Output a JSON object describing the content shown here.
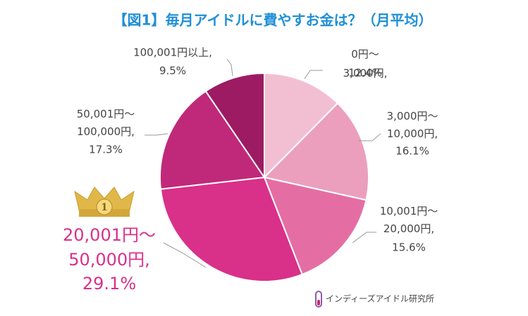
{
  "chart_data": {
    "type": "pie",
    "title": "【図1】毎月アイドルに費やすお金は？（月平均）",
    "categories": [
      "0円～3,000円,",
      "3,000円～10,000円,",
      "10,001円～20,000円,",
      "20,001円～50,000円,",
      "50,001円～100,000円,",
      "100,001円以上,"
    ],
    "values": [
      12.4,
      16.1,
      15.6,
      29.1,
      17.3,
      9.5
    ],
    "value_labels": [
      "12.4%",
      "16.1%",
      "15.6%",
      "29.1%",
      "17.3%",
      "9.5%"
    ],
    "colors": [
      "#f2bfd2",
      "#eb9fbd",
      "#e46ea3",
      "#d9308a",
      "#c02979",
      "#9c1b63"
    ],
    "badge": "1",
    "source": "インディーズアイドル研究所"
  }
}
